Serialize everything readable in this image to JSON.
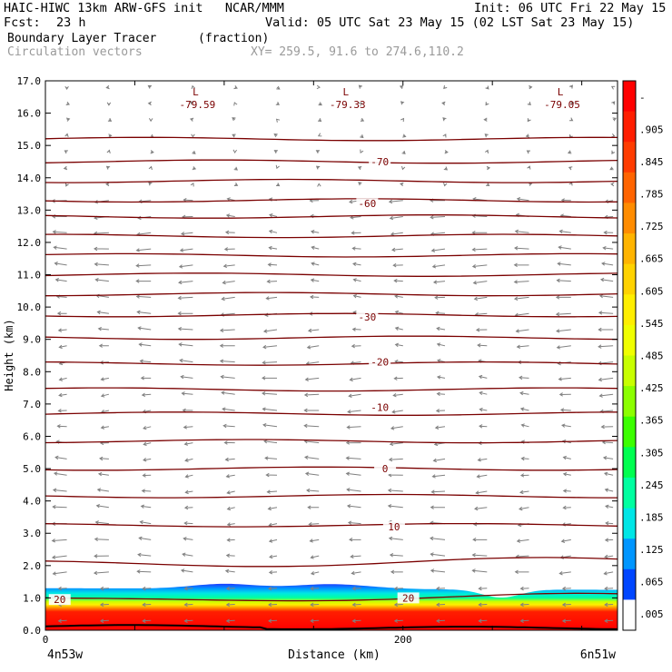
{
  "header": {
    "title": "HAIC-HIWC 13km ARW-GFS init   NCAR/MMM",
    "init": "Init: 06 UTC Fri 22 May 15",
    "fcst_label": "Fcst:",
    "fcst_value": "23 h",
    "valid": "Valid: 05 UTC Sat 23 May 15 (02 LST Sat 23 May 15)",
    "field_name": "Boundary Layer Tracer",
    "field_units": "(fraction)",
    "vector_label": "Circulation vectors",
    "xy_label": "XY= 259.5, 91.6 to 274.6,110.2"
  },
  "chart_data": {
    "type": "cross-section",
    "ylabel": "Height (km)",
    "xlabel": "Distance (km)",
    "ylim": [
      0,
      17
    ],
    "xlim": [
      0,
      320
    ],
    "y_ticks": [
      "0.0",
      "1.0",
      "2.0",
      "3.0",
      "4.0",
      "5.0",
      "6.0",
      "7.0",
      "8.0",
      "9.0",
      "10.0",
      "11.0",
      "12.0",
      "13.0",
      "14.0",
      "15.0",
      "16.0",
      "17.0"
    ],
    "x_ticks": [
      {
        "value": 0,
        "label": "0"
      },
      {
        "value": 200,
        "label": "200"
      }
    ],
    "x_endpoints": {
      "left": "4n53w",
      "right": "6n51w"
    },
    "colorbar": {
      "labels": [
        "-",
        ".905",
        ".845",
        ".785",
        ".725",
        ".665",
        ".605",
        ".545",
        ".485",
        ".425",
        ".365",
        ".305",
        ".245",
        ".185",
        ".125",
        ".065",
        ".005"
      ],
      "colors": [
        "#ff0000",
        "#ff1e00",
        "#ff3c00",
        "#ff6400",
        "#ff8c00",
        "#ffb400",
        "#ffd200",
        "#ffee00",
        "#f0ff00",
        "#c8ff00",
        "#8cff00",
        "#3cff00",
        "#00ff50",
        "#00ffa0",
        "#00e6e6",
        "#0096ff",
        "#0046ff",
        "#ffffff"
      ]
    },
    "temperature_contours": [
      {
        "label": "20",
        "x": 8,
        "y": 0.95
      },
      {
        "label": "20",
        "x": 203,
        "y": 1.0
      },
      {
        "label": "10",
        "x": 195,
        "y": 3.2
      },
      {
        "label": "0",
        "x": 190,
        "y": 5.0
      },
      {
        "label": "-10",
        "x": 187,
        "y": 6.9
      },
      {
        "label": "-20",
        "x": 187,
        "y": 8.3
      },
      {
        "label": "-30",
        "x": 180,
        "y": 9.7
      },
      {
        "label": "-60",
        "x": 180,
        "y": 13.2
      },
      {
        "label": "-70",
        "x": 187,
        "y": 14.5
      }
    ],
    "low_markers": [
      {
        "symbol": "L",
        "value": "-79.59",
        "x": 84,
        "y": 16.5
      },
      {
        "symbol": "L",
        "value": "-79.33",
        "x": 168,
        "y": 16.5
      },
      {
        "symbol": "L",
        "value": "-79.05",
        "x": 288,
        "y": 16.5
      }
    ]
  }
}
